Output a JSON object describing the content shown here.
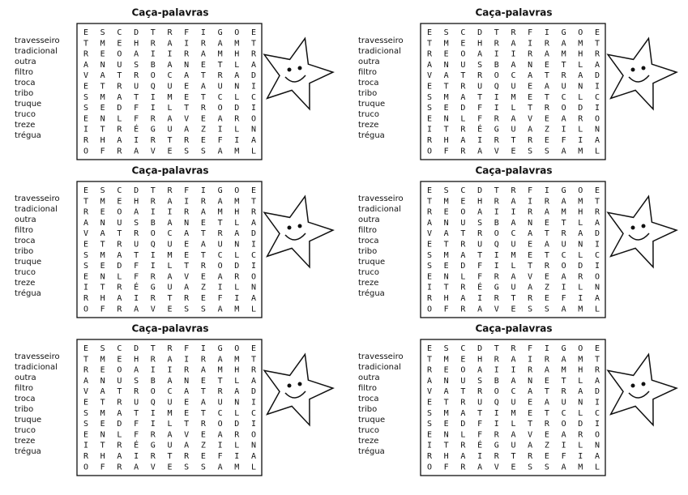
{
  "puzzle": {
    "title": "Caça-palavras",
    "words": [
      "travesseiro",
      "tradicional",
      "outra",
      "filtro",
      "troca",
      "tribo",
      "truque",
      "truco",
      "treze",
      "trégua"
    ],
    "grid": [
      [
        "E",
        "S",
        "C",
        "D",
        "T",
        "R",
        "F",
        "I",
        "G",
        "O",
        "E"
      ],
      [
        "T",
        "M",
        "E",
        "H",
        "R",
        "A",
        "I",
        "R",
        "A",
        "M",
        "T"
      ],
      [
        "R",
        "E",
        "O",
        "A",
        "I",
        "I",
        "R",
        "A",
        "M",
        "H",
        "R"
      ],
      [
        "A",
        "N",
        "U",
        "S",
        "B",
        "A",
        "N",
        "E",
        "T",
        "L",
        "A"
      ],
      [
        "V",
        "A",
        "T",
        "R",
        "O",
        "C",
        "A",
        "T",
        "R",
        "A",
        "D"
      ],
      [
        "E",
        "T",
        "R",
        "U",
        "Q",
        "U",
        "E",
        "A",
        "U",
        "N",
        "I"
      ],
      [
        "S",
        "M",
        "A",
        "T",
        "I",
        "M",
        "E",
        "T",
        "C",
        "L",
        "C"
      ],
      [
        "S",
        "E",
        "D",
        "F",
        "I",
        "L",
        "T",
        "R",
        "O",
        "D",
        "I"
      ],
      [
        "E",
        "N",
        "L",
        "F",
        "R",
        "A",
        "V",
        "E",
        "A",
        "R",
        "O"
      ],
      [
        "I",
        "T",
        "R",
        "É",
        "G",
        "U",
        "A",
        "Z",
        "I",
        "L",
        "N"
      ],
      [
        "R",
        "H",
        "A",
        "I",
        "R",
        "T",
        "R",
        "E",
        "F",
        "I",
        "A"
      ],
      [
        "O",
        "F",
        "R",
        "A",
        "V",
        "E",
        "S",
        "S",
        "A",
        "M",
        "L"
      ]
    ]
  }
}
